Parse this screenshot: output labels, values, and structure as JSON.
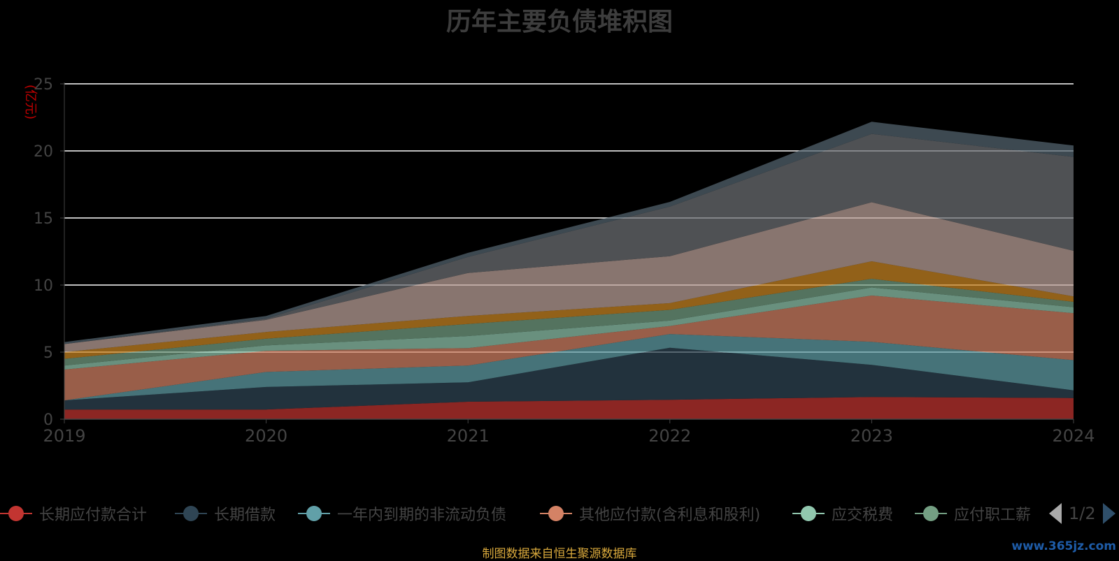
{
  "chart_data": {
    "type": "area",
    "title": "历年主要负债堆积图",
    "ylabel": "(亿元)",
    "x": [
      "2019",
      "2020",
      "2021",
      "2022",
      "2023",
      "2024"
    ],
    "ylim": [
      0,
      25
    ],
    "yticks": [
      0,
      5,
      10,
      15,
      20,
      25
    ],
    "stacked": true,
    "grid": true,
    "series": [
      {
        "name": "长期应付款合计",
        "color": "#c23531",
        "values": [
          0.72,
          0.72,
          1.3,
          1.45,
          1.65,
          1.58
        ]
      },
      {
        "name": "长期借款",
        "color": "#2f4554",
        "values": [
          0.68,
          1.68,
          1.45,
          3.88,
          2.4,
          0.57
        ]
      },
      {
        "name": "一年内到期的非流动负债",
        "color": "#61a0a8",
        "values": [
          0.0,
          1.12,
          1.25,
          1.02,
          1.72,
          2.25
        ]
      },
      {
        "name": "其他应付款(含利息和股利)",
        "color": "#d48265",
        "values": [
          2.3,
          1.58,
          1.3,
          0.6,
          3.45,
          3.5
        ]
      },
      {
        "name": "应交税费",
        "color": "#91c7ae",
        "values": [
          0.3,
          0.4,
          0.9,
          0.4,
          0.6,
          0.45
        ]
      },
      {
        "name": "应付职工薪酬",
        "color": "#749f83",
        "values": [
          0.5,
          0.5,
          0.9,
          0.8,
          0.65,
          0.4
        ]
      },
      {
        "name": "",
        "color": "#ca8622",
        "values": [
          0.5,
          0.5,
          0.6,
          0.5,
          1.3,
          0.4
        ]
      },
      {
        "name": "",
        "color": "#bda29a",
        "values": [
          0.6,
          0.9,
          3.2,
          3.5,
          4.4,
          3.4
        ]
      },
      {
        "name": "",
        "color": "#6e7074",
        "values": [
          0.0,
          0.1,
          1.2,
          3.7,
          5.1,
          7.0
        ]
      },
      {
        "name": "",
        "color": "#546570",
        "values": [
          0.15,
          0.2,
          0.3,
          0.35,
          0.9,
          0.85
        ]
      }
    ]
  },
  "legend": {
    "page": "1/2",
    "items": [
      "长期应付款合计",
      "长期借款",
      "一年内到期的非流动负债",
      "其他应付款(含利息和股利)",
      "应交税费",
      "应付职工薪"
    ]
  },
  "footer": {
    "source": "制图数据来自恒生聚源数据库",
    "watermark": "www.365jz.com"
  }
}
